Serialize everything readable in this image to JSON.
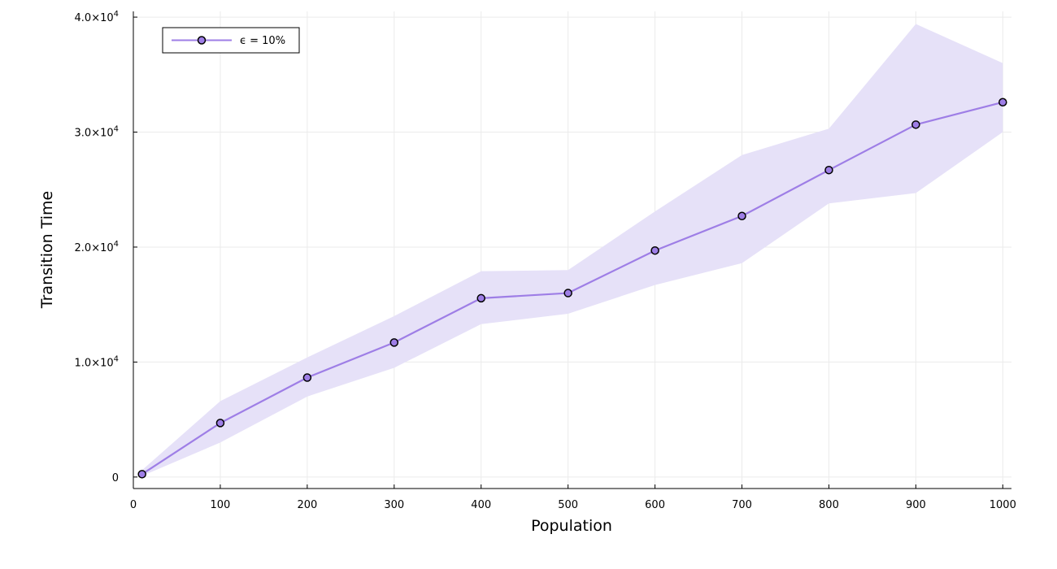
{
  "chart_data": {
    "type": "line",
    "title": "",
    "xlabel": "Population",
    "ylabel": "Transition Time",
    "xlim": [
      0,
      1010
    ],
    "ylim": [
      -1000,
      40500
    ],
    "x_ticks": [
      {
        "value": 0,
        "label": "0"
      },
      {
        "value": 100,
        "label": "100"
      },
      {
        "value": 200,
        "label": "200"
      },
      {
        "value": 300,
        "label": "300"
      },
      {
        "value": 400,
        "label": "400"
      },
      {
        "value": 500,
        "label": "500"
      },
      {
        "value": 600,
        "label": "600"
      },
      {
        "value": 700,
        "label": "700"
      },
      {
        "value": 800,
        "label": "800"
      },
      {
        "value": 900,
        "label": "900"
      },
      {
        "value": 1000,
        "label": "1000"
      }
    ],
    "y_ticks": [
      {
        "value": 0,
        "mantissa": "0",
        "exponent": ""
      },
      {
        "value": 10000,
        "mantissa": "1.0×10",
        "exponent": "4"
      },
      {
        "value": 20000,
        "mantissa": "2.0×10",
        "exponent": "4"
      },
      {
        "value": 30000,
        "mantissa": "3.0×10",
        "exponent": "4"
      },
      {
        "value": 40000,
        "mantissa": "4.0×10",
        "exponent": "4"
      }
    ],
    "grid": true,
    "legend_position": "top-left",
    "series": [
      {
        "name": "ϵ = 10%",
        "x": [
          10,
          100,
          200,
          300,
          400,
          500,
          600,
          700,
          800,
          900,
          1000
        ],
        "y": [
          250,
          4700,
          8650,
          11700,
          15550,
          16000,
          19700,
          22700,
          26700,
          30650,
          32600
        ],
        "band_upper": [
          600,
          6600,
          10400,
          14000,
          17900,
          18000,
          23100,
          28000,
          30300,
          39400,
          36000
        ],
        "band_lower": [
          100,
          3000,
          7000,
          9500,
          13300,
          14200,
          16700,
          18600,
          23800,
          24700,
          30000
        ],
        "line_color": "#9e7ee6",
        "marker_color": "#9e7ee6",
        "band_color": "#e6e1f8"
      }
    ]
  }
}
